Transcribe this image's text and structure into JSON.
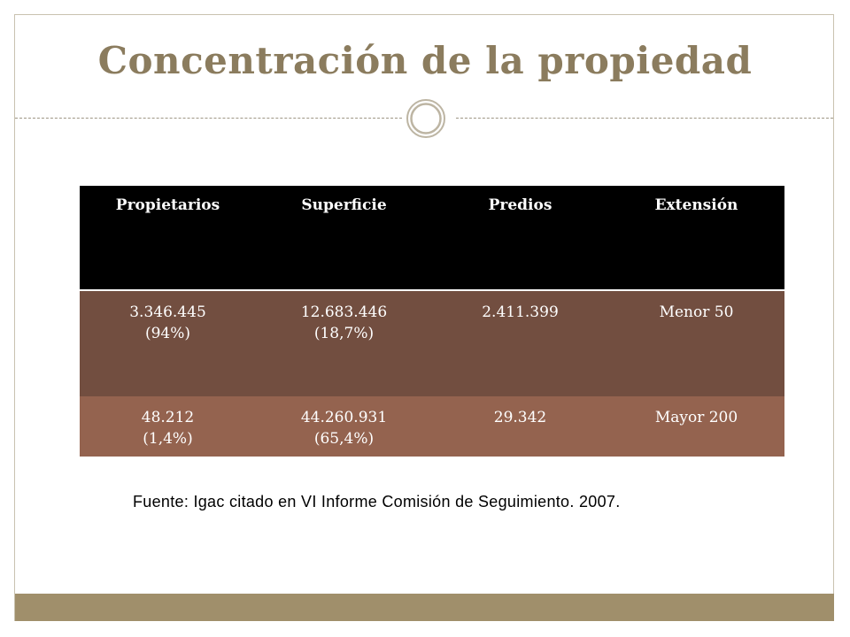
{
  "slide": {
    "title": "Concentración de la propiedad",
    "table": {
      "headers": [
        "Propietarios",
        "Superficie",
        "Predios",
        "Extensión"
      ],
      "rows": [
        [
          {
            "line1": "3.346.445",
            "line2": "(94%)"
          },
          {
            "line1": "12.683.446",
            "line2": "(18,7%)"
          },
          {
            "line1": "2.411.399",
            "line2": ""
          },
          {
            "line1": "Menor 50",
            "line2": ""
          }
        ],
        [
          {
            "line1": "48.212",
            "line2": "(1,4%)"
          },
          {
            "line1": "44.260.931",
            "line2": "(65,4%)"
          },
          {
            "line1": "29.342",
            "line2": ""
          },
          {
            "line1": "Mayor 200",
            "line2": ""
          }
        ]
      ]
    },
    "source": "Fuente: Igac citado en VI Informe Comisión de Seguimiento. 2007.",
    "colors": {
      "title": "#8b7c5e",
      "header_bg": "#000000",
      "row1_bg": "#724e40",
      "row2_bg": "#94634f",
      "footer_bar": "#a08f6b"
    },
    "ornament_icon": "double-circle-icon"
  }
}
